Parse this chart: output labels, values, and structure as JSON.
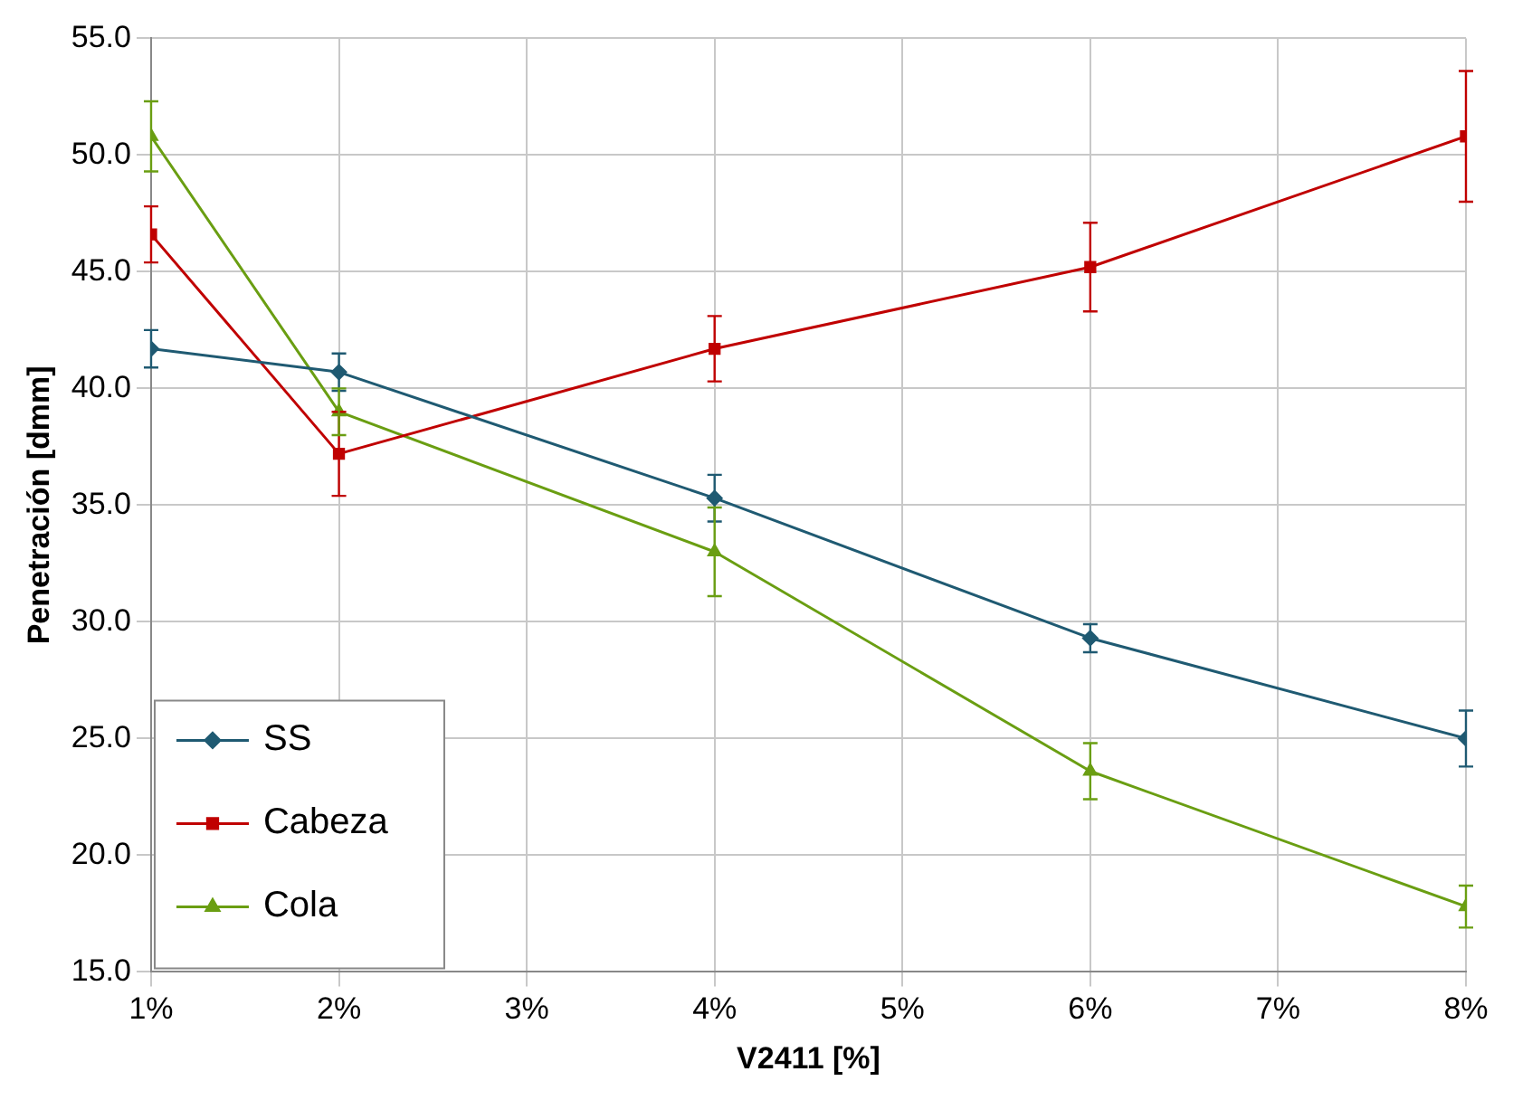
{
  "chart_data": {
    "type": "line",
    "xlabel": "V2411 [%]",
    "ylabel": "Penetración [dmm]",
    "x": [
      1,
      2,
      4,
      6,
      8
    ],
    "xlim": [
      1,
      8
    ],
    "xticks": [
      {
        "value": 1,
        "label": "1%"
      },
      {
        "value": 2,
        "label": "2%"
      },
      {
        "value": 3,
        "label": "3%"
      },
      {
        "value": 4,
        "label": "4%"
      },
      {
        "value": 5,
        "label": "5%"
      },
      {
        "value": 6,
        "label": "6%"
      },
      {
        "value": 7,
        "label": "7%"
      },
      {
        "value": 8,
        "label": "8%"
      }
    ],
    "ylim": [
      15,
      55
    ],
    "yticks": [
      {
        "value": 15,
        "label": "15.0"
      },
      {
        "value": 20,
        "label": "20.0"
      },
      {
        "value": 25,
        "label": "25.0"
      },
      {
        "value": 30,
        "label": "30.0"
      },
      {
        "value": 35,
        "label": "35.0"
      },
      {
        "value": 40,
        "label": "40.0"
      },
      {
        "value": 45,
        "label": "45.0"
      },
      {
        "value": 50,
        "label": "50.0"
      },
      {
        "value": 55,
        "label": "55.0"
      }
    ],
    "grid": true,
    "legend": "bottom left",
    "line_style": "solid",
    "series": [
      {
        "name": "SS",
        "color": "#1f5a72",
        "marker": "diamond",
        "values": [
          41.7,
          40.7,
          35.3,
          29.3,
          25.0
        ],
        "errors": [
          0.8,
          0.8,
          1.0,
          0.6,
          1.2
        ]
      },
      {
        "name": "Cabeza",
        "color": "#c00000",
        "marker": "square",
        "values": [
          46.6,
          37.2,
          41.7,
          45.2,
          50.8
        ],
        "errors": [
          1.2,
          1.8,
          1.4,
          1.9,
          2.8
        ]
      },
      {
        "name": "Cola",
        "color": "#6a9e12",
        "marker": "triangle",
        "values": [
          50.8,
          39.0,
          33.0,
          23.6,
          17.8
        ],
        "errors": [
          1.5,
          1.0,
          1.9,
          1.2,
          0.9
        ]
      }
    ]
  }
}
